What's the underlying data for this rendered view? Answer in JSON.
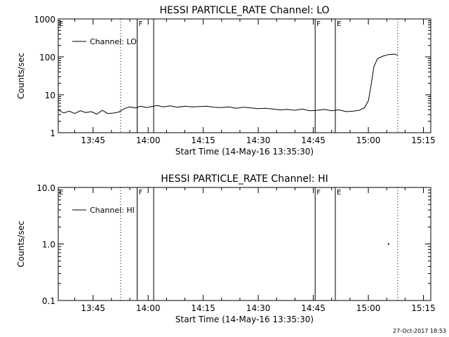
{
  "footer": "27-Oct-2017 18:53",
  "chart_data": [
    {
      "type": "line",
      "title": "HESSI PARTICLE_RATE Channel: LO",
      "xlabel": "Start Time (14-May-16 13:35:30)",
      "ylabel": "Counts/sec",
      "yscale": "log",
      "ylim": [
        1,
        1000
      ],
      "xlim": [
        "13:35:30",
        "15:17:00"
      ],
      "x_ticks": [
        "13:45",
        "14:00",
        "14:15",
        "14:30",
        "14:45",
        "15:00",
        "15:15"
      ],
      "y_ticks": [
        "1",
        "10",
        "100",
        "1000"
      ],
      "legend": {
        "position": "top-left",
        "entries": [
          "Channel: LO"
        ]
      },
      "vlines": [
        {
          "time": "13:52:30",
          "style": "dotted"
        },
        {
          "time": "13:57:00",
          "style": "solid",
          "label": "F"
        },
        {
          "time": "14:01:30",
          "style": "solid"
        },
        {
          "time": "14:45:30",
          "style": "solid",
          "label": "F"
        },
        {
          "time": "14:51:00",
          "style": "solid",
          "label": "E"
        },
        {
          "time": "15:08:00",
          "style": "dotted"
        }
      ],
      "edge_labels": [
        {
          "side": "left",
          "label": "E"
        }
      ],
      "series": [
        {
          "name": "Channel: LO",
          "x": [
            "13:35:30",
            "13:37:00",
            "13:38:30",
            "13:40:00",
            "13:41:30",
            "13:43:00",
            "13:44:30",
            "13:46:00",
            "13:47:30",
            "13:49:00",
            "13:50:30",
            "13:52:00",
            "13:53:30",
            "13:55:00",
            "13:56:30",
            "13:58:00",
            "13:59:30",
            "14:01:00",
            "14:02:30",
            "14:04:00",
            "14:06:00",
            "14:08:00",
            "14:10:00",
            "14:12:00",
            "14:14:00",
            "14:16:00",
            "14:18:00",
            "14:20:00",
            "14:22:00",
            "14:24:00",
            "14:26:00",
            "14:28:00",
            "14:30:00",
            "14:32:00",
            "14:34:00",
            "14:36:00",
            "14:38:00",
            "14:40:00",
            "14:42:00",
            "14:44:00",
            "14:46:00",
            "14:48:00",
            "14:50:00",
            "14:52:00",
            "14:54:00",
            "14:56:00",
            "14:57:30",
            "14:59:00",
            "15:00:00",
            "15:00:45",
            "15:01:30",
            "15:02:30",
            "15:04:00",
            "15:05:30",
            "15:07:00",
            "15:08:00"
          ],
          "values": [
            4.0,
            3.3,
            3.7,
            3.2,
            3.8,
            3.4,
            3.6,
            3.1,
            3.9,
            3.2,
            3.3,
            3.5,
            4.3,
            4.8,
            4.5,
            5.0,
            4.6,
            4.9,
            5.2,
            4.8,
            5.1,
            4.7,
            5.0,
            4.8,
            4.9,
            5.0,
            4.7,
            4.6,
            4.8,
            4.4,
            4.7,
            4.5,
            4.3,
            4.4,
            4.2,
            4.0,
            4.1,
            3.9,
            4.2,
            3.8,
            3.9,
            4.1,
            3.8,
            4.0,
            3.6,
            3.7,
            3.9,
            4.6,
            7,
            18,
            55,
            90,
            105,
            115,
            118,
            112
          ]
        }
      ]
    },
    {
      "type": "line",
      "title": "HESSI PARTICLE_RATE Channel: HI",
      "xlabel": "Start Time (14-May-16 13:35:30)",
      "ylabel": "Counts/sec",
      "yscale": "log",
      "ylim": [
        0.1,
        10.0
      ],
      "xlim": [
        "13:35:30",
        "15:17:00"
      ],
      "x_ticks": [
        "13:45",
        "14:00",
        "14:15",
        "14:30",
        "14:45",
        "15:00",
        "15:15"
      ],
      "y_ticks": [
        "0.1",
        "1.0",
        "10.0"
      ],
      "legend": {
        "position": "top-left",
        "entries": [
          "Channel: HI"
        ]
      },
      "vlines": [
        {
          "time": "13:52:30",
          "style": "dotted"
        },
        {
          "time": "13:57:00",
          "style": "solid",
          "label": "F"
        },
        {
          "time": "14:01:30",
          "style": "solid"
        },
        {
          "time": "14:45:30",
          "style": "solid",
          "label": "F"
        },
        {
          "time": "14:51:00",
          "style": "solid",
          "label": "E"
        },
        {
          "time": "15:08:00",
          "style": "dotted"
        }
      ],
      "edge_labels": [
        {
          "side": "left",
          "label": "E"
        }
      ],
      "series": [
        {
          "name": "Channel: HI",
          "x": [
            "15:05:30"
          ],
          "values": [
            1.0
          ]
        }
      ]
    }
  ]
}
